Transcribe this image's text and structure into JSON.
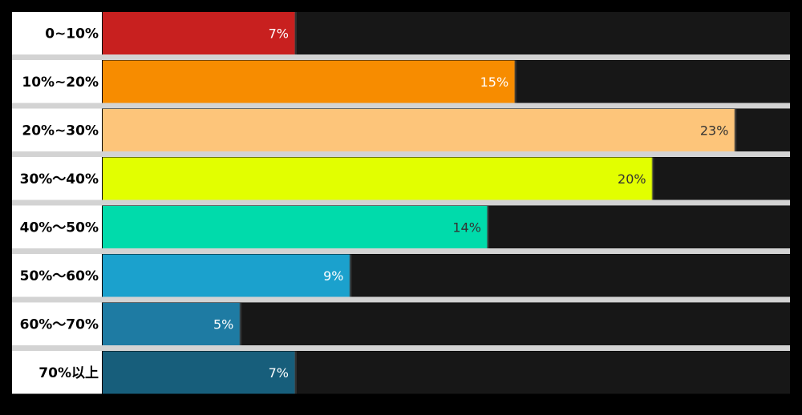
{
  "chart_data": {
    "type": "bar",
    "orientation": "horizontal",
    "categories": [
      "0~10%",
      "10%~20%",
      "20%~30%",
      "30%～40%",
      "40%～50%",
      "50%～60%",
      "60%～70%",
      "70%以上"
    ],
    "values": [
      7,
      15,
      23,
      20,
      14,
      9,
      5,
      7
    ],
    "value_labels": [
      "7%",
      "15%",
      "23%",
      "20%",
      "14%",
      "9%",
      "5%",
      "7%"
    ],
    "xlim": [
      0,
      25
    ],
    "unit": "%",
    "bar_colors": [
      "#C8201F",
      "#F78C00",
      "#FDC57A",
      "#E2FF00",
      "#00DBAB",
      "#1BA1CD",
      "#1E7BA3",
      "#175E7B"
    ],
    "value_label_colors": [
      "#FFFFFF",
      "#FFFFFF",
      "#333333",
      "#333333",
      "#333333",
      "#FFFFFF",
      "#FFFFFF",
      "#FFFFFF"
    ],
    "track_color": "#171717",
    "separator_color": "#D3D3D3",
    "label_background": "#FFFFFF",
    "page_background": "#000000",
    "grid": false,
    "legend": "none"
  }
}
